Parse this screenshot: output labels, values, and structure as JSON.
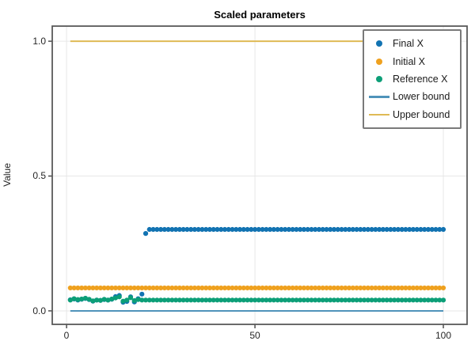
{
  "figure": {
    "kind": "static-plot-window"
  },
  "colors": {
    "final_x": "#1273b2",
    "initial_x": "#efa11f",
    "reference_x": "#0d9f78",
    "lower_bound": "#4f93ba",
    "upper_bound": "#dfba55",
    "spine": "#595959",
    "grid": "#e7e7e7",
    "tick": "#333333",
    "text": "#262626",
    "legend_border": "#7a7a7a",
    "background": "#ffffff"
  },
  "chart_data": {
    "type": "scatter",
    "title": "Scaled parameters",
    "xlabel": "",
    "ylabel": "Value",
    "xlim": [
      -3.8,
      106.3
    ],
    "ylim": [
      -0.05,
      1.056
    ],
    "grid": true,
    "legend_position": "upper right",
    "xticks": [
      {
        "value": 0,
        "label": "0"
      },
      {
        "value": 50,
        "label": "50"
      },
      {
        "value": 100,
        "label": "100"
      }
    ],
    "yticks": [
      {
        "value": 0.0,
        "label": "0.0"
      },
      {
        "value": 0.5,
        "label": "0.5"
      },
      {
        "value": 1.0,
        "label": "1.0"
      }
    ],
    "series": [
      {
        "name": "Final X",
        "type": "scatter",
        "marker": "dot",
        "color": "#1273b2",
        "x_start": 1,
        "x_end": 100,
        "base_y": 0.302,
        "overrides": {
          "1": 0.041,
          "2": 0.044,
          "3": 0.04,
          "4": 0.043,
          "5": 0.046,
          "6": 0.042,
          "7": 0.036,
          "8": 0.04,
          "9": 0.039,
          "10": 0.042,
          "11": 0.04,
          "12": 0.043,
          "13": 0.053,
          "14": 0.057,
          "15": 0.032,
          "16": 0.035,
          "17": 0.052,
          "18": 0.033,
          "19": 0.045,
          "20": 0.062,
          "21": 0.287
        }
      },
      {
        "name": "Initial X",
        "type": "scatter",
        "marker": "dot",
        "color": "#efa11f",
        "x_start": 1,
        "x_end": 100,
        "base_y": 0.085,
        "overrides": {}
      },
      {
        "name": "Reference X",
        "type": "scatter",
        "marker": "dot",
        "color": "#0d9f78",
        "x_start": 1,
        "x_end": 100,
        "base_y": 0.04,
        "overrides": {
          "2": 0.045,
          "3": 0.042,
          "4": 0.044,
          "5": 0.047,
          "6": 0.043,
          "7": 0.037,
          "9": 0.039,
          "10": 0.043,
          "12": 0.044,
          "13": 0.048,
          "14": 0.052,
          "15": 0.036,
          "17": 0.049,
          "18": 0.038,
          "19": 0.042
        }
      },
      {
        "name": "Lower bound",
        "type": "line",
        "marker": "line",
        "color": "#4f93ba",
        "x_start": 1,
        "x_end": 100,
        "base_y": 0.0,
        "overrides": {}
      },
      {
        "name": "Upper bound",
        "type": "line",
        "marker": "line",
        "color": "#dfba55",
        "x_start": 1,
        "x_end": 100,
        "base_y": 1.0,
        "overrides": {}
      }
    ]
  }
}
